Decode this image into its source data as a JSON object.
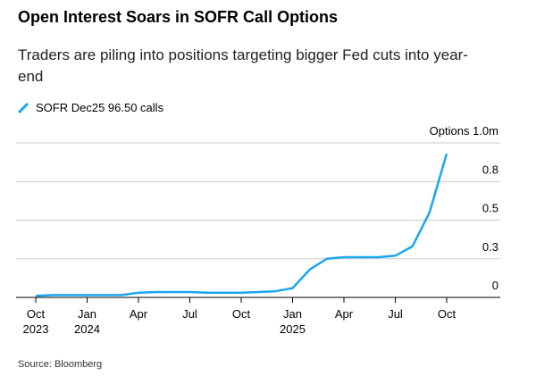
{
  "chart_data": {
    "type": "line",
    "title": "Open Interest Soars in SOFR Call Options",
    "subtitle": "Traders are piling into positions targeting bigger Fed cuts into year-end",
    "source": "Source: Bloomberg",
    "x": [
      "2023-10",
      "2023-11",
      "2023-12",
      "2024-01",
      "2024-02",
      "2024-03",
      "2024-04",
      "2024-05",
      "2024-06",
      "2024-07",
      "2024-08",
      "2024-09",
      "2024-10",
      "2024-11",
      "2024-12",
      "2025-01",
      "2025-02",
      "2025-03",
      "2025-04",
      "2025-05",
      "2025-06",
      "2025-07",
      "2025-08",
      "2025-09",
      "2025-10"
    ],
    "series": [
      {
        "name": "SOFR Dec25 96.50 calls",
        "color": "#1ca5f0",
        "values": [
          0.01,
          0.015,
          0.015,
          0.015,
          0.015,
          0.015,
          0.03,
          0.035,
          0.035,
          0.035,
          0.03,
          0.03,
          0.03,
          0.035,
          0.04,
          0.06,
          0.18,
          0.25,
          0.26,
          0.26,
          0.26,
          0.27,
          0.33,
          0.55,
          0.93
        ]
      }
    ],
    "xlim": [
      "2023-10",
      "2025-10"
    ],
    "xticks": [
      {
        "value": "2023-10",
        "label": "Oct 2023"
      },
      {
        "value": "2024-01",
        "label": "Jan 2024"
      },
      {
        "value": "2024-04",
        "label": "Apr"
      },
      {
        "value": "2024-07",
        "label": "Jul"
      },
      {
        "value": "2024-10",
        "label": "Oct"
      },
      {
        "value": "2025-01",
        "label": "Jan 2025"
      },
      {
        "value": "2025-04",
        "label": "Apr"
      },
      {
        "value": "2025-07",
        "label": "Jul"
      },
      {
        "value": "2025-10",
        "label": "Oct"
      }
    ],
    "ylim": [
      0,
      1.0
    ],
    "yticks": [
      0,
      {
        "value": 0.25,
        "label": "0.3"
      },
      0.5,
      {
        "value": 0.75,
        "label": "0.8"
      },
      {
        "value": 1.0,
        "label": "Options 1.0m"
      }
    ],
    "grid": true
  }
}
